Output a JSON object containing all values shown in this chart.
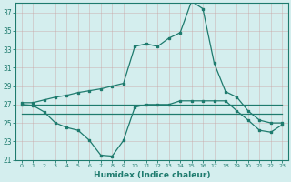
{
  "xlabel": "Humidex (Indice chaleur)",
  "x": [
    0,
    1,
    2,
    3,
    4,
    5,
    6,
    7,
    8,
    9,
    10,
    11,
    12,
    13,
    14,
    15,
    16,
    17,
    18,
    19,
    20,
    21,
    22,
    23
  ],
  "line_flat1": [
    27,
    27,
    27,
    27,
    27,
    27,
    27,
    27,
    27,
    27,
    27,
    27,
    27,
    27,
    27,
    27,
    27,
    27,
    27,
    27,
    27,
    27,
    27,
    27
  ],
  "line_flat2": [
    26,
    26,
    26,
    26,
    26,
    26,
    26,
    26,
    26,
    26,
    26,
    26,
    26,
    26,
    26,
    26,
    26,
    26,
    26,
    26,
    26,
    26,
    26,
    26
  ],
  "line_upper": [
    27.2,
    27.2,
    27.5,
    27.8,
    28.0,
    28.3,
    28.5,
    28.7,
    29.0,
    29.3,
    33.3,
    33.6,
    33.3,
    34.2,
    34.8,
    38.2,
    37.4,
    31.5,
    28.4,
    27.8,
    26.3,
    25.3,
    25.0,
    25.0
  ],
  "line_lower": [
    27.0,
    26.9,
    26.2,
    25.0,
    24.5,
    24.2,
    23.1,
    21.5,
    21.4,
    23.1,
    26.7,
    27.0,
    27.0,
    27.0,
    27.4,
    27.4,
    27.4,
    27.4,
    27.4,
    26.3,
    25.3,
    24.2,
    24.0,
    24.8
  ],
  "color": "#1e7b6e",
  "background": "#d4eeee",
  "ylim": [
    21,
    38
  ],
  "yticks": [
    21,
    23,
    25,
    27,
    29,
    31,
    33,
    35,
    37
  ],
  "xticks": [
    0,
    1,
    2,
    3,
    4,
    5,
    6,
    7,
    8,
    9,
    10,
    11,
    12,
    13,
    14,
    15,
    16,
    17,
    18,
    19,
    20,
    21,
    22,
    23
  ]
}
